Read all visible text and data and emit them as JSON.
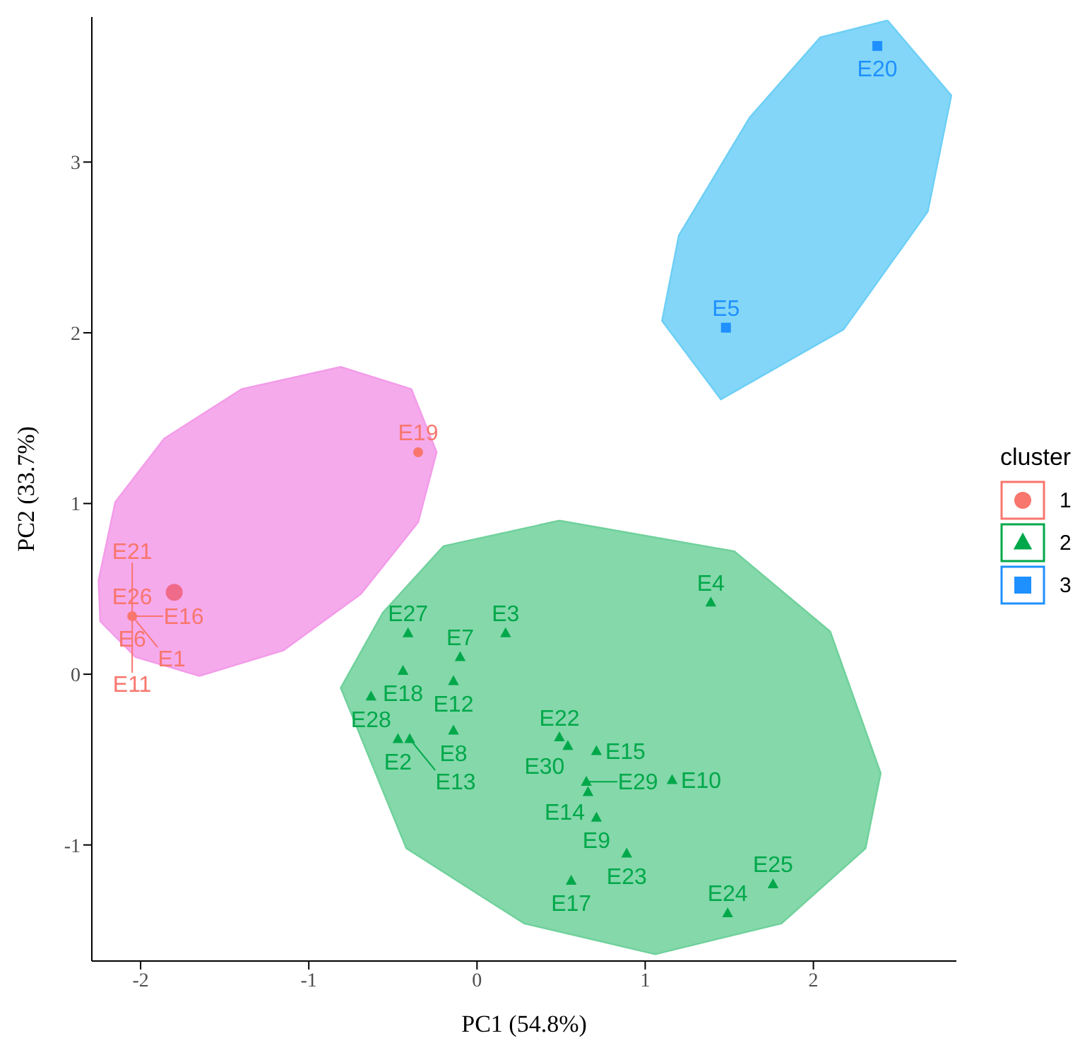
{
  "chart_data": {
    "type": "scatter",
    "xlabel": "PC1 (54.8%)",
    "ylabel": "PC2 (33.7%)",
    "legend_title": "cluster",
    "legend": "right",
    "grid": false,
    "xlim": [
      -2.29,
      2.85
    ],
    "ylim": [
      -1.68,
      3.85
    ],
    "xticks": [
      -2,
      -1,
      0,
      1,
      2
    ],
    "yticks": [
      -1,
      0,
      1,
      2,
      3
    ],
    "series": [
      {
        "type": "area",
        "color": "#f39be9",
        "x": [
          -2.25,
          -2.15,
          -1.86,
          -1.4,
          -0.81,
          -0.39,
          -0.24,
          -0.35,
          -0.69,
          -1.15,
          -1.65,
          -2.03,
          -2.24
        ],
        "values": [
          0.55,
          1.01,
          1.38,
          1.67,
          1.8,
          1.67,
          1.3,
          0.89,
          0.47,
          0.14,
          -0.01,
          0.1,
          0.31
        ]
      },
      {
        "type": "area",
        "color": "#6fd19b",
        "x": [
          0.49,
          1.53,
          2.1,
          2.4,
          2.31,
          1.81,
          1.06,
          0.28,
          -0.42,
          -0.81,
          -0.56,
          -0.2
        ],
        "values": [
          0.9,
          0.72,
          0.25,
          -0.58,
          -1.02,
          -1.46,
          -1.64,
          -1.46,
          -1.02,
          -0.08,
          0.36,
          0.75
        ]
      },
      {
        "type": "area",
        "color": "#6dcff6",
        "x": [
          2.44,
          2.82,
          2.68,
          2.18,
          1.45,
          1.1,
          1.2,
          1.62,
          2.04
        ],
        "values": [
          3.83,
          3.39,
          2.71,
          2.02,
          1.61,
          2.07,
          2.57,
          3.26,
          3.73
        ]
      },
      {
        "name": "1",
        "color": "#f8766d",
        "marker": "circle",
        "x": [
          -2.05,
          -0.35
        ],
        "values": [
          0.34,
          1.3
        ]
      },
      {
        "color": "#f06a8a",
        "marker": "circle",
        "x": [
          -1.8
        ],
        "values": [
          0.48
        ]
      },
      {
        "name": "2",
        "color": "#00a84a",
        "marker": "triangle",
        "x": [
          -0.41,
          0.17,
          1.39,
          -0.1,
          -0.44,
          -0.63,
          -0.14,
          -0.14,
          -0.47,
          -0.4,
          0.49,
          0.54,
          0.71,
          0.65,
          0.66,
          1.16,
          0.71,
          0.89,
          0.56,
          1.76,
          1.49
        ],
        "values": [
          0.24,
          0.24,
          0.42,
          0.1,
          0.02,
          -0.13,
          -0.04,
          -0.33,
          -0.38,
          -0.38,
          -0.37,
          -0.42,
          -0.45,
          -0.63,
          -0.69,
          -0.62,
          -0.84,
          -1.05,
          -1.21,
          -1.23,
          -1.4
        ]
      },
      {
        "name": "3",
        "color": "#1e90ff",
        "marker": "square",
        "x": [
          2.38,
          1.48
        ],
        "values": [
          3.68,
          2.03
        ]
      }
    ],
    "annotations": [
      {
        "text": "E26",
        "x": -2.05,
        "y": 0.34
      },
      {
        "text": "E6",
        "x": -2.05,
        "y": 0.34
      },
      {
        "text": "E16",
        "x": -2.05,
        "y": 0.34
      },
      {
        "text": "E1",
        "x": -2.05,
        "y": 0.34
      },
      {
        "text": "E21",
        "x": -2.05,
        "y": 0.34
      },
      {
        "text": "E11",
        "x": -2.05,
        "y": 0.34
      },
      {
        "text": "E19",
        "x": -0.35,
        "y": 1.3
      },
      {
        "text": "E20",
        "x": 2.38,
        "y": 3.68
      },
      {
        "text": "E5",
        "x": 1.48,
        "y": 2.03
      },
      {
        "text": "E27",
        "x": -0.41,
        "y": 0.24
      },
      {
        "text": "E3",
        "x": 0.17,
        "y": 0.24
      },
      {
        "text": "E4",
        "x": 1.39,
        "y": 0.42
      },
      {
        "text": "E7",
        "x": -0.1,
        "y": 0.1
      },
      {
        "text": "E18",
        "x": -0.44,
        "y": 0.02
      },
      {
        "text": "E28",
        "x": -0.63,
        "y": -0.13
      },
      {
        "text": "E12",
        "x": -0.14,
        "y": -0.04
      },
      {
        "text": "E8",
        "x": -0.14,
        "y": -0.33
      },
      {
        "text": "E2",
        "x": -0.47,
        "y": -0.38
      },
      {
        "text": "E13",
        "x": -0.4,
        "y": -0.38
      },
      {
        "text": "E22",
        "x": 0.49,
        "y": -0.37
      },
      {
        "text": "E30",
        "x": 0.54,
        "y": -0.42
      },
      {
        "text": "E15",
        "x": 0.71,
        "y": -0.45
      },
      {
        "text": "E29",
        "x": 0.65,
        "y": -0.63
      },
      {
        "text": "E14",
        "x": 0.66,
        "y": -0.69
      },
      {
        "text": "E10",
        "x": 1.16,
        "y": -0.62
      },
      {
        "text": "E9",
        "x": 0.71,
        "y": -0.84
      },
      {
        "text": "E23",
        "x": 0.89,
        "y": -1.05
      },
      {
        "text": "E17",
        "x": 0.56,
        "y": -1.21
      },
      {
        "text": "E25",
        "x": 1.76,
        "y": -1.23
      },
      {
        "text": "E24",
        "x": 1.49,
        "y": -1.4
      }
    ]
  }
}
